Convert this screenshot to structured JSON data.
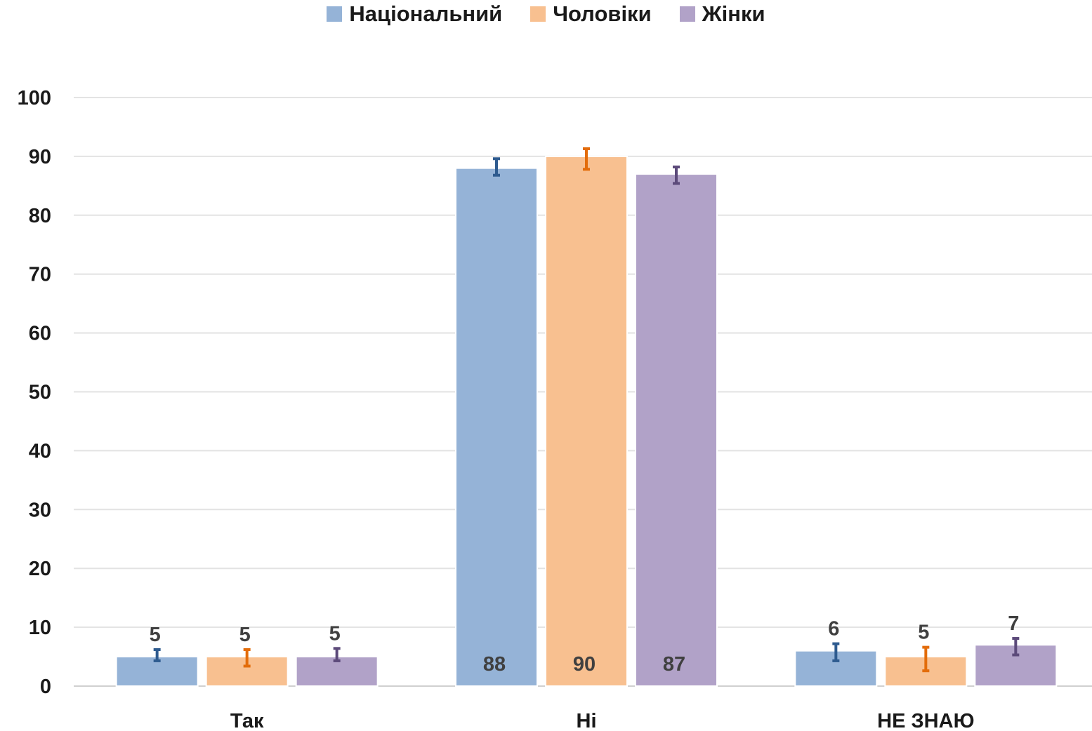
{
  "chart_data": {
    "type": "bar",
    "title": "",
    "xlabel": "",
    "ylabel": "",
    "ylim": [
      0,
      100
    ],
    "yticks": [
      0,
      10,
      20,
      30,
      40,
      50,
      60,
      70,
      80,
      90,
      100
    ],
    "grid": true,
    "legend_position": "top",
    "categories": [
      "Так",
      "Ні",
      "НЕ ЗНАЮ"
    ],
    "series": [
      {
        "name": "Національний",
        "color": "#95b3d7",
        "error_color": "#2e5b8f",
        "values": [
          5,
          88,
          6
        ],
        "labels": [
          "5",
          "88",
          "6"
        ],
        "error": [
          [
            4.3,
            6.2
          ],
          [
            86.8,
            89.6
          ],
          [
            4.3,
            7.2
          ]
        ]
      },
      {
        "name": "Чоловіки",
        "color": "#f8c090",
        "error_color": "#e36c0a",
        "values": [
          5,
          90,
          5
        ],
        "labels": [
          "5",
          "90",
          "5"
        ],
        "error": [
          [
            3.4,
            6.2
          ],
          [
            87.8,
            91.3
          ],
          [
            2.6,
            6.6
          ]
        ]
      },
      {
        "name": "Жінки",
        "color": "#b1a2c8",
        "error_color": "#5c4a7a",
        "values": [
          5,
          87,
          7
        ],
        "labels": [
          "5",
          "87",
          "7"
        ],
        "error": [
          [
            4.3,
            6.4
          ],
          [
            85.4,
            88.2
          ],
          [
            5.3,
            8.1
          ]
        ]
      }
    ]
  }
}
